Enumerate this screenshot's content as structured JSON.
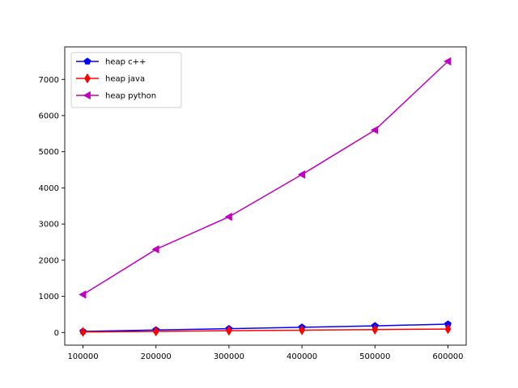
{
  "chart_data": {
    "type": "line",
    "x": [
      100000,
      200000,
      300000,
      400000,
      500000,
      600000
    ],
    "xlim": [
      75000,
      625000
    ],
    "ylim": [
      -350,
      7900
    ],
    "xticks": [
      100000,
      200000,
      300000,
      400000,
      500000,
      600000
    ],
    "yticks": [
      0,
      1000,
      2000,
      3000,
      4000,
      5000,
      6000,
      7000
    ],
    "grid": false,
    "legend_position": "top-left",
    "series": [
      {
        "name": "heap c++",
        "color": "#0000ff",
        "marker": "pentagon",
        "values": [
          30,
          70,
          105,
          145,
          185,
          230
        ]
      },
      {
        "name": "heap java",
        "color": "#ff0000",
        "marker": "thin-diamond",
        "values": [
          15,
          30,
          50,
          65,
          80,
          95
        ]
      },
      {
        "name": "heap python",
        "color": "#bf00bf",
        "marker": "triangle-left",
        "values": [
          1050,
          2300,
          3200,
          4370,
          5600,
          7500
        ]
      }
    ]
  }
}
